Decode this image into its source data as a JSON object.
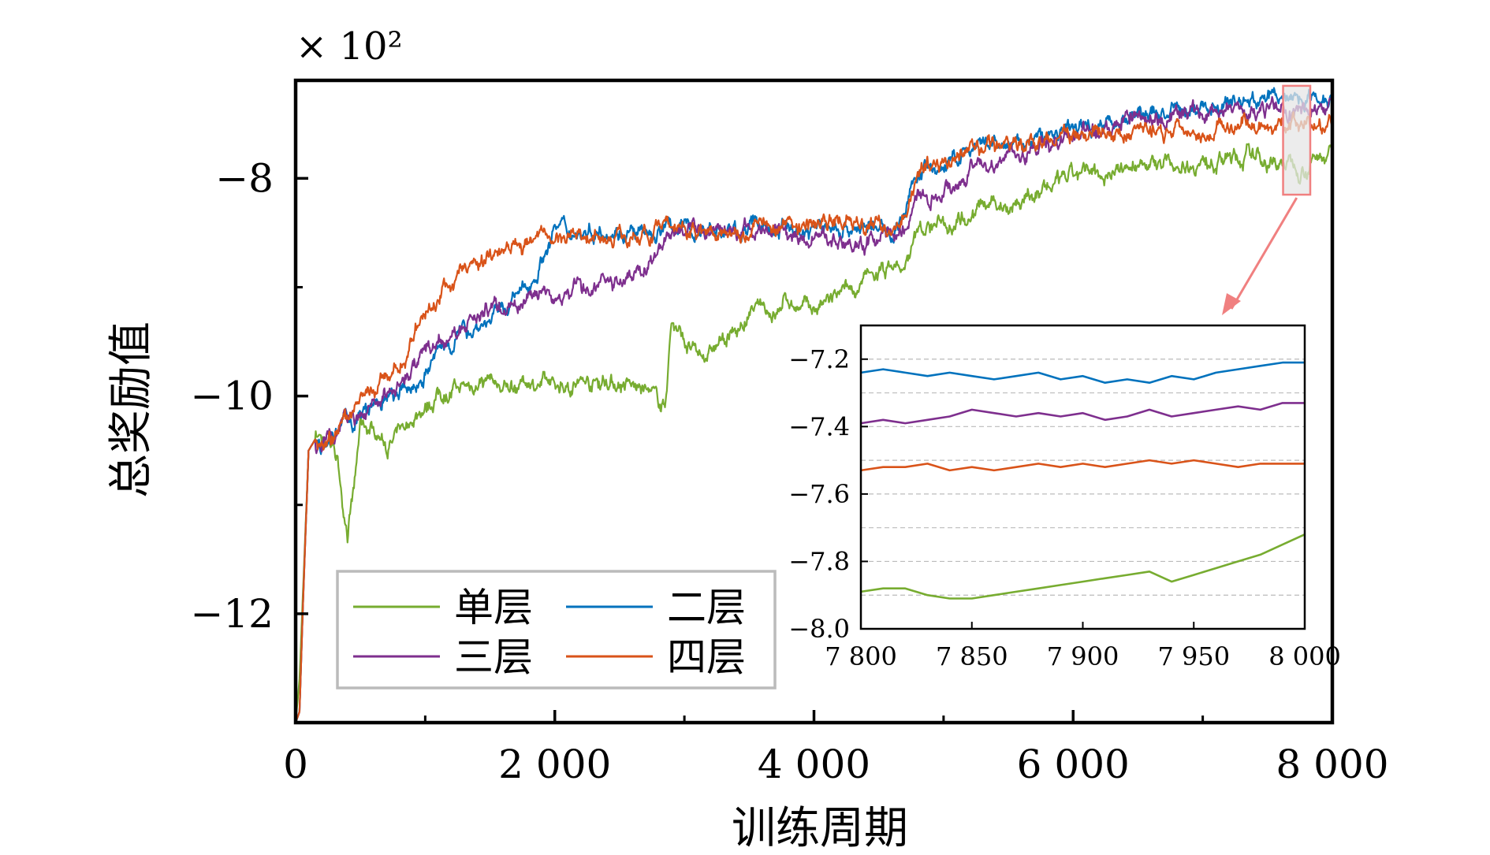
{
  "chart_data": [
    {
      "id": "main",
      "type": "line",
      "title": "",
      "xlabel": "训练周期",
      "ylabel": "总奖励值",
      "y_multiplier": "× 10²",
      "xlim": [
        0,
        8000
      ],
      "ylim": [
        -13.0,
        -7.1
      ],
      "x_ticks": [
        0,
        2000,
        4000,
        6000,
        8000
      ],
      "x_tick_labels": [
        "0",
        "2 000",
        "4 000",
        "6 000",
        "8 000"
      ],
      "y_ticks": [
        -8,
        -10,
        -12
      ],
      "y_tick_labels": [
        "−8",
        "−10",
        "−12"
      ],
      "grid": false,
      "legend_position": "lower-left",
      "x": [
        0,
        30,
        60,
        100,
        150,
        200,
        250,
        300,
        350,
        380,
        400,
        420,
        450,
        500,
        600,
        700,
        750,
        800,
        900,
        1000,
        1100,
        1200,
        1300,
        1400,
        1500,
        1600,
        1700,
        1800,
        1900,
        2000,
        2200,
        2400,
        2600,
        2700,
        2800,
        2850,
        2900,
        3000,
        3100,
        3200,
        3300,
        3400,
        3500,
        3600,
        3700,
        3800,
        3900,
        4000,
        4200,
        4400,
        4600,
        4700,
        4800,
        5000,
        5200,
        5400,
        5600,
        5800,
        6000,
        6200,
        6400,
        6600,
        6800,
        7000,
        7200,
        7400,
        7600,
        7800,
        8000
      ],
      "series": [
        {
          "name": "单层",
          "color": "#77ac30",
          "values": [
            -13.0,
            -12.6,
            -11.7,
            -10.5,
            -10.4,
            -10.35,
            -10.4,
            -10.45,
            -10.8,
            -11.2,
            -11.4,
            -11.1,
            -10.9,
            -10.25,
            -10.3,
            -10.45,
            -10.45,
            -10.35,
            -10.2,
            -10.1,
            -9.98,
            -9.96,
            -9.92,
            -9.88,
            -9.82,
            -9.95,
            -9.9,
            -9.85,
            -9.9,
            -9.9,
            -9.88,
            -9.85,
            -9.92,
            -9.95,
            -10.05,
            -10.1,
            -9.3,
            -9.5,
            -9.65,
            -9.6,
            -9.5,
            -9.4,
            -9.3,
            -9.15,
            -9.25,
            -9.1,
            -9.2,
            -9.2,
            -9.1,
            -8.95,
            -8.8,
            -8.85,
            -8.5,
            -8.4,
            -8.3,
            -8.25,
            -8.2,
            -8.1,
            -8.0,
            -7.95,
            -7.9,
            -7.85,
            -7.85,
            -7.85,
            -7.82,
            -7.8,
            -7.85,
            -7.88,
            -7.72
          ]
        },
        {
          "name": "二层",
          "color": "#0072bd",
          "values": [
            -13.0,
            -12.9,
            -11.8,
            -10.5,
            -10.4,
            -10.45,
            -10.35,
            -10.4,
            -10.3,
            -10.2,
            -10.25,
            -10.2,
            -10.25,
            -10.2,
            -10.1,
            -10.05,
            -10.0,
            -10.0,
            -9.92,
            -9.8,
            -9.6,
            -9.5,
            -9.4,
            -9.35,
            -9.3,
            -9.2,
            -9.1,
            -9.0,
            -8.75,
            -8.45,
            -8.5,
            -8.45,
            -8.5,
            -8.55,
            -8.5,
            -8.45,
            -8.45,
            -8.45,
            -8.5,
            -8.45,
            -8.5,
            -8.5,
            -8.45,
            -8.4,
            -8.5,
            -8.45,
            -8.5,
            -8.45,
            -8.45,
            -8.45,
            -8.5,
            -8.3,
            -7.95,
            -7.9,
            -7.75,
            -7.7,
            -7.7,
            -7.6,
            -7.55,
            -7.5,
            -7.45,
            -7.4,
            -7.4,
            -7.35,
            -7.3,
            -7.28,
            -7.25,
            -7.25,
            -7.22
          ]
        },
        {
          "name": "三层",
          "color": "#7e2f8e",
          "values": [
            -13.0,
            -12.9,
            -11.8,
            -10.5,
            -10.4,
            -10.45,
            -10.35,
            -10.4,
            -10.3,
            -10.2,
            -10.25,
            -10.2,
            -10.25,
            -10.2,
            -10.1,
            -10.0,
            -9.95,
            -9.9,
            -9.7,
            -9.6,
            -9.5,
            -9.45,
            -9.4,
            -9.25,
            -9.2,
            -9.2,
            -9.15,
            -9.1,
            -9.0,
            -9.1,
            -9.0,
            -9.0,
            -8.9,
            -8.8,
            -8.7,
            -8.6,
            -8.55,
            -8.5,
            -8.45,
            -8.5,
            -8.55,
            -8.5,
            -8.45,
            -8.5,
            -8.45,
            -8.5,
            -8.55,
            -8.5,
            -8.55,
            -8.6,
            -8.5,
            -8.45,
            -8.2,
            -8.1,
            -7.95,
            -7.85,
            -7.75,
            -7.7,
            -7.65,
            -7.55,
            -7.5,
            -7.45,
            -7.42,
            -7.4,
            -7.38,
            -7.38,
            -7.36,
            -7.38,
            -7.32
          ]
        },
        {
          "name": "四层",
          "color": "#d95319",
          "values": [
            -13.0,
            -12.9,
            -11.8,
            -10.5,
            -10.4,
            -10.45,
            -10.35,
            -10.4,
            -10.3,
            -10.2,
            -10.2,
            -10.15,
            -10.1,
            -10.0,
            -9.95,
            -9.85,
            -9.8,
            -9.7,
            -9.5,
            -9.25,
            -9.1,
            -8.95,
            -8.85,
            -8.8,
            -8.7,
            -8.6,
            -8.55,
            -8.6,
            -8.55,
            -8.55,
            -8.5,
            -8.55,
            -8.5,
            -8.5,
            -8.5,
            -8.45,
            -8.45,
            -8.5,
            -8.45,
            -8.5,
            -8.45,
            -8.5,
            -8.45,
            -8.4,
            -8.45,
            -8.4,
            -8.45,
            -8.4,
            -8.4,
            -8.45,
            -8.45,
            -8.3,
            -7.95,
            -7.85,
            -7.75,
            -7.7,
            -7.7,
            -7.65,
            -7.6,
            -7.6,
            -7.6,
            -7.55,
            -7.55,
            -7.55,
            -7.52,
            -7.5,
            -7.52,
            -7.52,
            -7.5
          ]
        }
      ],
      "zoom_region": {
        "x": [
          7800,
          8000
        ],
        "y": [
          -8.0,
          -7.1
        ]
      }
    },
    {
      "id": "inset",
      "type": "line",
      "title": "",
      "xlabel": "",
      "ylabel": "",
      "xlim": [
        7800,
        8000
      ],
      "ylim": [
        -8.0,
        -7.1
      ],
      "x_ticks": [
        7800,
        7850,
        7900,
        7950,
        8000
      ],
      "x_tick_labels": [
        "7 800",
        "7 850",
        "7 900",
        "7 950",
        "8 000"
      ],
      "y_ticks": [
        -7.2,
        -7.4,
        -7.6,
        -7.8,
        -8.0
      ],
      "y_tick_labels": [
        "−7.2",
        "−7.4",
        "−7.6",
        "−7.8",
        "−8.0"
      ],
      "grid": true,
      "x": [
        7800,
        7810,
        7820,
        7830,
        7840,
        7850,
        7860,
        7870,
        7880,
        7890,
        7900,
        7910,
        7920,
        7930,
        7940,
        7950,
        7960,
        7970,
        7980,
        7990,
        8000
      ],
      "series": [
        {
          "name": "单层",
          "color": "#77ac30",
          "values": [
            -7.89,
            -7.88,
            -7.88,
            -7.9,
            -7.91,
            -7.91,
            -7.9,
            -7.89,
            -7.88,
            -7.87,
            -7.86,
            -7.85,
            -7.84,
            -7.83,
            -7.86,
            -7.84,
            -7.82,
            -7.8,
            -7.78,
            -7.75,
            -7.72
          ]
        },
        {
          "name": "二层",
          "color": "#0072bd",
          "values": [
            -7.24,
            -7.23,
            -7.24,
            -7.25,
            -7.24,
            -7.25,
            -7.26,
            -7.25,
            -7.24,
            -7.26,
            -7.25,
            -7.27,
            -7.26,
            -7.27,
            -7.25,
            -7.26,
            -7.24,
            -7.23,
            -7.22,
            -7.21,
            -7.21
          ]
        },
        {
          "name": "三层",
          "color": "#7e2f8e",
          "values": [
            -7.39,
            -7.38,
            -7.39,
            -7.38,
            -7.37,
            -7.35,
            -7.36,
            -7.37,
            -7.36,
            -7.37,
            -7.36,
            -7.38,
            -7.37,
            -7.35,
            -7.37,
            -7.36,
            -7.35,
            -7.34,
            -7.35,
            -7.33,
            -7.33
          ]
        },
        {
          "name": "四层",
          "color": "#d95319",
          "values": [
            -7.53,
            -7.52,
            -7.52,
            -7.51,
            -7.53,
            -7.52,
            -7.53,
            -7.52,
            -7.51,
            -7.52,
            -7.51,
            -7.52,
            -7.51,
            -7.5,
            -7.51,
            -7.5,
            -7.51,
            -7.52,
            -7.51,
            -7.51,
            -7.51
          ]
        }
      ]
    }
  ],
  "legend": {
    "items": [
      {
        "label": "单层",
        "color": "#77ac30"
      },
      {
        "label": "二层",
        "color": "#0072bd"
      },
      {
        "label": "三层",
        "color": "#7e2f8e"
      },
      {
        "label": "四层",
        "color": "#d95319"
      }
    ]
  },
  "colors": {
    "zoom_arrow": "#f08080",
    "zoom_box_fill": "#e6e6e6",
    "grid": "#bbbbbb"
  }
}
